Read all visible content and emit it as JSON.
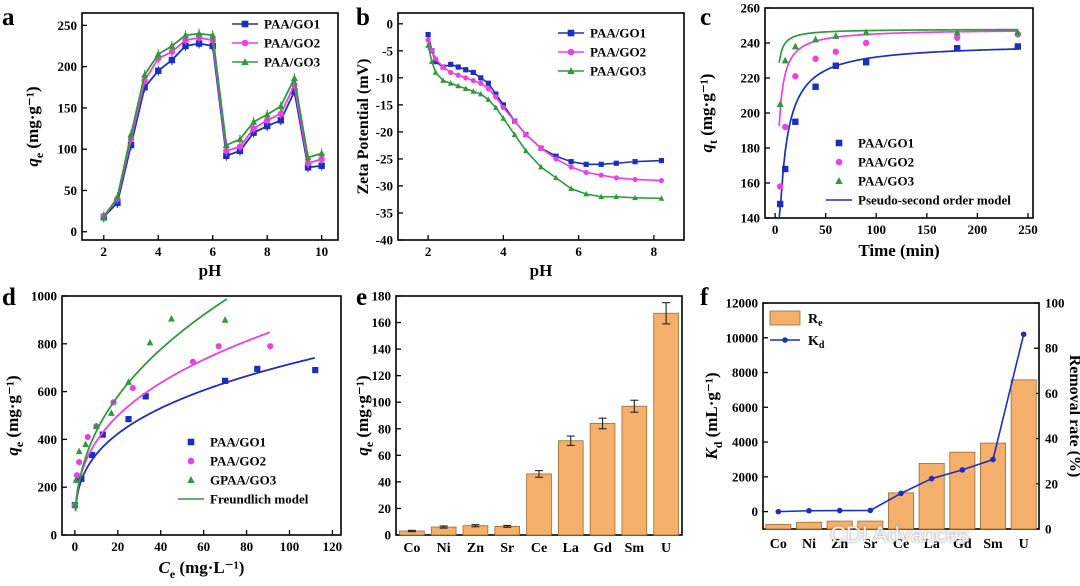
{
  "figure": {
    "watermark": "CDI Advances",
    "panel_letters": [
      "a",
      "b",
      "c",
      "d",
      "e",
      "f"
    ]
  },
  "colors": {
    "blue": "#1a2fbf",
    "magenta": "#ee3ee6",
    "green": "#2e9a3a",
    "bar": "#f4b06a",
    "bar_edge": "#9a6a38"
  },
  "chart_data": [
    {
      "id": "a",
      "type": "line",
      "letter": "a",
      "xlabel": "pH",
      "ylabel_main": "q",
      "ylabel_sub": "e",
      "ylabel_unit": " (mg·g⁻¹)",
      "xlim": [
        1.2,
        10.6
      ],
      "ylim": [
        -10,
        265
      ],
      "xticks": [
        2,
        4,
        6,
        8,
        10
      ],
      "yticks": [
        0,
        50,
        100,
        150,
        200,
        250
      ],
      "x": [
        2,
        2.5,
        3,
        3.5,
        4,
        4.5,
        5,
        5.5,
        6,
        6.5,
        7,
        7.5,
        8,
        8.5,
        9,
        9.5,
        10
      ],
      "series": [
        {
          "name": "PAA/GO1",
          "color": "blue",
          "marker": "square",
          "values": [
            18,
            35,
            105,
            175,
            195,
            208,
            225,
            228,
            225,
            92,
            98,
            120,
            128,
            135,
            170,
            78,
            80
          ]
        },
        {
          "name": "PAA/GO2",
          "color": "magenta",
          "marker": "circle",
          "values": [
            19,
            40,
            112,
            183,
            210,
            218,
            232,
            235,
            232,
            98,
            103,
            125,
            135,
            143,
            178,
            83,
            88
          ]
        },
        {
          "name": "PAA/GO3",
          "color": "green",
          "marker": "triangle",
          "values": [
            17,
            42,
            118,
            190,
            215,
            225,
            238,
            240,
            238,
            105,
            112,
            133,
            142,
            152,
            186,
            90,
            95
          ]
        }
      ],
      "legend": "top-right"
    },
    {
      "id": "b",
      "type": "line",
      "letter": "b",
      "xlabel": "pH",
      "ylabel": "Zeta Potential (mV)",
      "xlim": [
        1.2,
        8.8
      ],
      "ylim": [
        -40,
        2
      ],
      "xticks": [
        2,
        4,
        6,
        8
      ],
      "yticks": [
        0,
        -5,
        -10,
        -15,
        -20,
        -25,
        -30,
        -35,
        -40
      ],
      "series": [
        {
          "name": "PAA/GO1",
          "color": "blue",
          "marker": "square",
          "x": [
            2,
            2.1,
            2.2,
            2.4,
            2.6,
            2.8,
            3,
            3.2,
            3.4,
            3.6,
            3.8,
            4,
            4.3,
            4.6,
            5,
            5.4,
            5.8,
            6.2,
            6.6,
            7,
            7.5,
            8.2
          ],
          "values": [
            -2,
            -5,
            -7,
            -8,
            -7.5,
            -8,
            -8.5,
            -9,
            -10,
            -11,
            -13,
            -15,
            -18,
            -20.5,
            -23,
            -24.5,
            -25.5,
            -26,
            -26,
            -25.8,
            -25.5,
            -25.3
          ]
        },
        {
          "name": "PAA/GO2",
          "color": "magenta",
          "marker": "circle",
          "x": [
            2,
            2.1,
            2.2,
            2.4,
            2.6,
            2.8,
            3,
            3.2,
            3.4,
            3.6,
            3.8,
            4,
            4.3,
            4.6,
            5,
            5.4,
            5.8,
            6.2,
            6.6,
            7,
            7.5,
            8.2
          ],
          "values": [
            -3,
            -5,
            -6.5,
            -8,
            -9,
            -9.5,
            -10,
            -10.5,
            -11,
            -12,
            -13.5,
            -15.5,
            -18,
            -20.5,
            -23,
            -25,
            -26.5,
            -27.5,
            -28,
            -28.5,
            -28.8,
            -29
          ]
        },
        {
          "name": "PAA/GO3",
          "color": "green",
          "marker": "triangle",
          "x": [
            2,
            2.1,
            2.2,
            2.4,
            2.6,
            2.8,
            3,
            3.2,
            3.4,
            3.6,
            3.8,
            4,
            4.3,
            4.6,
            5,
            5.4,
            5.8,
            6.2,
            6.6,
            7,
            7.5,
            8.2
          ],
          "values": [
            -4,
            -7,
            -9,
            -10.5,
            -11,
            -11.5,
            -12,
            -12.5,
            -13,
            -14,
            -15.5,
            -17.5,
            -20.5,
            -23.5,
            -26.5,
            -28.5,
            -30.5,
            -31.5,
            -32,
            -32,
            -32.2,
            -32.3
          ]
        }
      ],
      "legend": "top-right"
    },
    {
      "id": "c",
      "type": "scatter",
      "letter": "c",
      "xlabel": "Time (min)",
      "ylabel_main": "q",
      "ylabel_sub": "t",
      "ylabel_unit": " (mg·g⁻¹)",
      "xlim": [
        -10,
        255
      ],
      "ylim": [
        140,
        260
      ],
      "xticks": [
        0,
        50,
        100,
        150,
        200,
        250
      ],
      "yticks": [
        140,
        160,
        180,
        200,
        220,
        240,
        260
      ],
      "series": [
        {
          "name": "PAA/GO1",
          "color": "blue",
          "marker": "square",
          "x": [
            5,
            10,
            20,
            40,
            60,
            90,
            180,
            240
          ],
          "values": [
            148,
            168,
            195,
            215,
            227,
            229,
            237,
            238
          ]
        },
        {
          "name": "PAA/GO2",
          "color": "magenta",
          "marker": "circle",
          "x": [
            5,
            10,
            20,
            40,
            60,
            90,
            180,
            240
          ],
          "values": [
            158,
            192,
            221,
            231,
            235,
            240,
            243,
            245
          ]
        },
        {
          "name": "PAA/GO3",
          "color": "green",
          "marker": "triangle",
          "x": [
            5,
            10,
            20,
            40,
            60,
            90,
            180,
            240
          ],
          "values": [
            205,
            230,
            238,
            242,
            244,
            246,
            246,
            246
          ]
        }
      ],
      "model": {
        "name": "Pseudo-second order model",
        "color": "blue"
      },
      "fits": [
        {
          "qe": 240,
          "k": 0.0012
        },
        {
          "qe": 248,
          "k": 0.0035
        },
        {
          "qe": 248,
          "k": 0.012
        }
      ],
      "legend": "bottom-right"
    },
    {
      "id": "d",
      "type": "scatter",
      "letter": "d",
      "xlabel_main": "C",
      "xlabel_sub": "e",
      "xlabel_unit": " (mg·L⁻¹)",
      "ylabel_main": "q",
      "ylabel_sub": "e",
      "ylabel_unit": " (mg·g⁻¹)",
      "xlim": [
        -6,
        124
      ],
      "ylim": [
        0,
        1000
      ],
      "xticks": [
        0,
        20,
        40,
        60,
        80,
        100,
        120
      ],
      "yticks": [
        0,
        200,
        400,
        600,
        800,
        1000
      ],
      "series": [
        {
          "name": "PAA/GO1",
          "color": "blue",
          "marker": "square",
          "x": [
            0,
            1.5,
            3,
            8,
            13,
            25,
            33,
            70,
            85,
            112
          ],
          "values": [
            125,
            240,
            235,
            335,
            420,
            485,
            580,
            645,
            695,
            690
          ]
        },
        {
          "name": "PAA/GO2",
          "color": "magenta",
          "marker": "circle",
          "x": [
            0,
            1,
            2,
            6,
            10,
            18,
            27,
            55,
            67,
            91
          ],
          "values": [
            125,
            250,
            305,
            410,
            455,
            555,
            615,
            725,
            790,
            790
          ]
        },
        {
          "name": "GPAA/GO3",
          "color": "green",
          "marker": "triangle",
          "x": [
            0,
            0.5,
            2,
            5,
            10,
            17,
            25,
            35,
            45,
            70
          ],
          "values": [
            125,
            230,
            350,
            380,
            455,
            510,
            640,
            805,
            905,
            900
          ]
        }
      ],
      "model": {
        "name": "Freundlich model",
        "color": "green"
      },
      "fits": [
        {
          "kf": 160,
          "n": 0.325,
          "xmax": 112
        },
        {
          "kf": 175,
          "n": 0.35,
          "xmax": 91
        },
        {
          "kf": 165,
          "n": 0.42,
          "xmax": 71
        }
      ],
      "legend": "bottom-right"
    },
    {
      "id": "e",
      "type": "bar",
      "letter": "e",
      "ylabel_main": "q",
      "ylabel_sub": "e",
      "ylabel_unit": " (mg·g⁻¹)",
      "categories": [
        "Co",
        "Ni",
        "Zn",
        "Sr",
        "Ce",
        "La",
        "Gd",
        "Sm",
        "U"
      ],
      "values": [
        3,
        6,
        7,
        6.5,
        46,
        71,
        84,
        97,
        167
      ],
      "errors": [
        0.5,
        0.8,
        0.8,
        0.7,
        2.5,
        3.5,
        4,
        4.5,
        8
      ],
      "ylim": [
        0,
        180
      ],
      "yticks": [
        0,
        20,
        40,
        60,
        80,
        100,
        120,
        140,
        160,
        180
      ]
    },
    {
      "id": "f",
      "type": "bar",
      "letter": "f",
      "ylabel_main": "K",
      "ylabel_sub": "d",
      "ylabel_unit": " (mL·g⁻¹)",
      "ylabel_right": "Removal rate (%)",
      "categories": [
        "Co",
        "Ni",
        "Zn",
        "Sr",
        "Ce",
        "La",
        "Gd",
        "Sm",
        "U"
      ],
      "bar_series": {
        "name": "R",
        "sub": "e",
        "values": [
          2,
          3,
          3.5,
          3.5,
          16,
          29,
          34,
          38,
          66
        ]
      },
      "line_series": {
        "name": "K",
        "sub": "d",
        "values": [
          0,
          50,
          60,
          70,
          1050,
          1900,
          2400,
          3000,
          10200
        ]
      },
      "ylim_left": [
        -1000,
        12000
      ],
      "ylim_right": [
        0,
        100
      ],
      "yticks_left": [
        0,
        2000,
        4000,
        6000,
        8000,
        10000,
        12000
      ],
      "yticks_right": [
        0,
        20,
        40,
        60,
        80,
        100
      ],
      "legend": "top-left"
    }
  ]
}
